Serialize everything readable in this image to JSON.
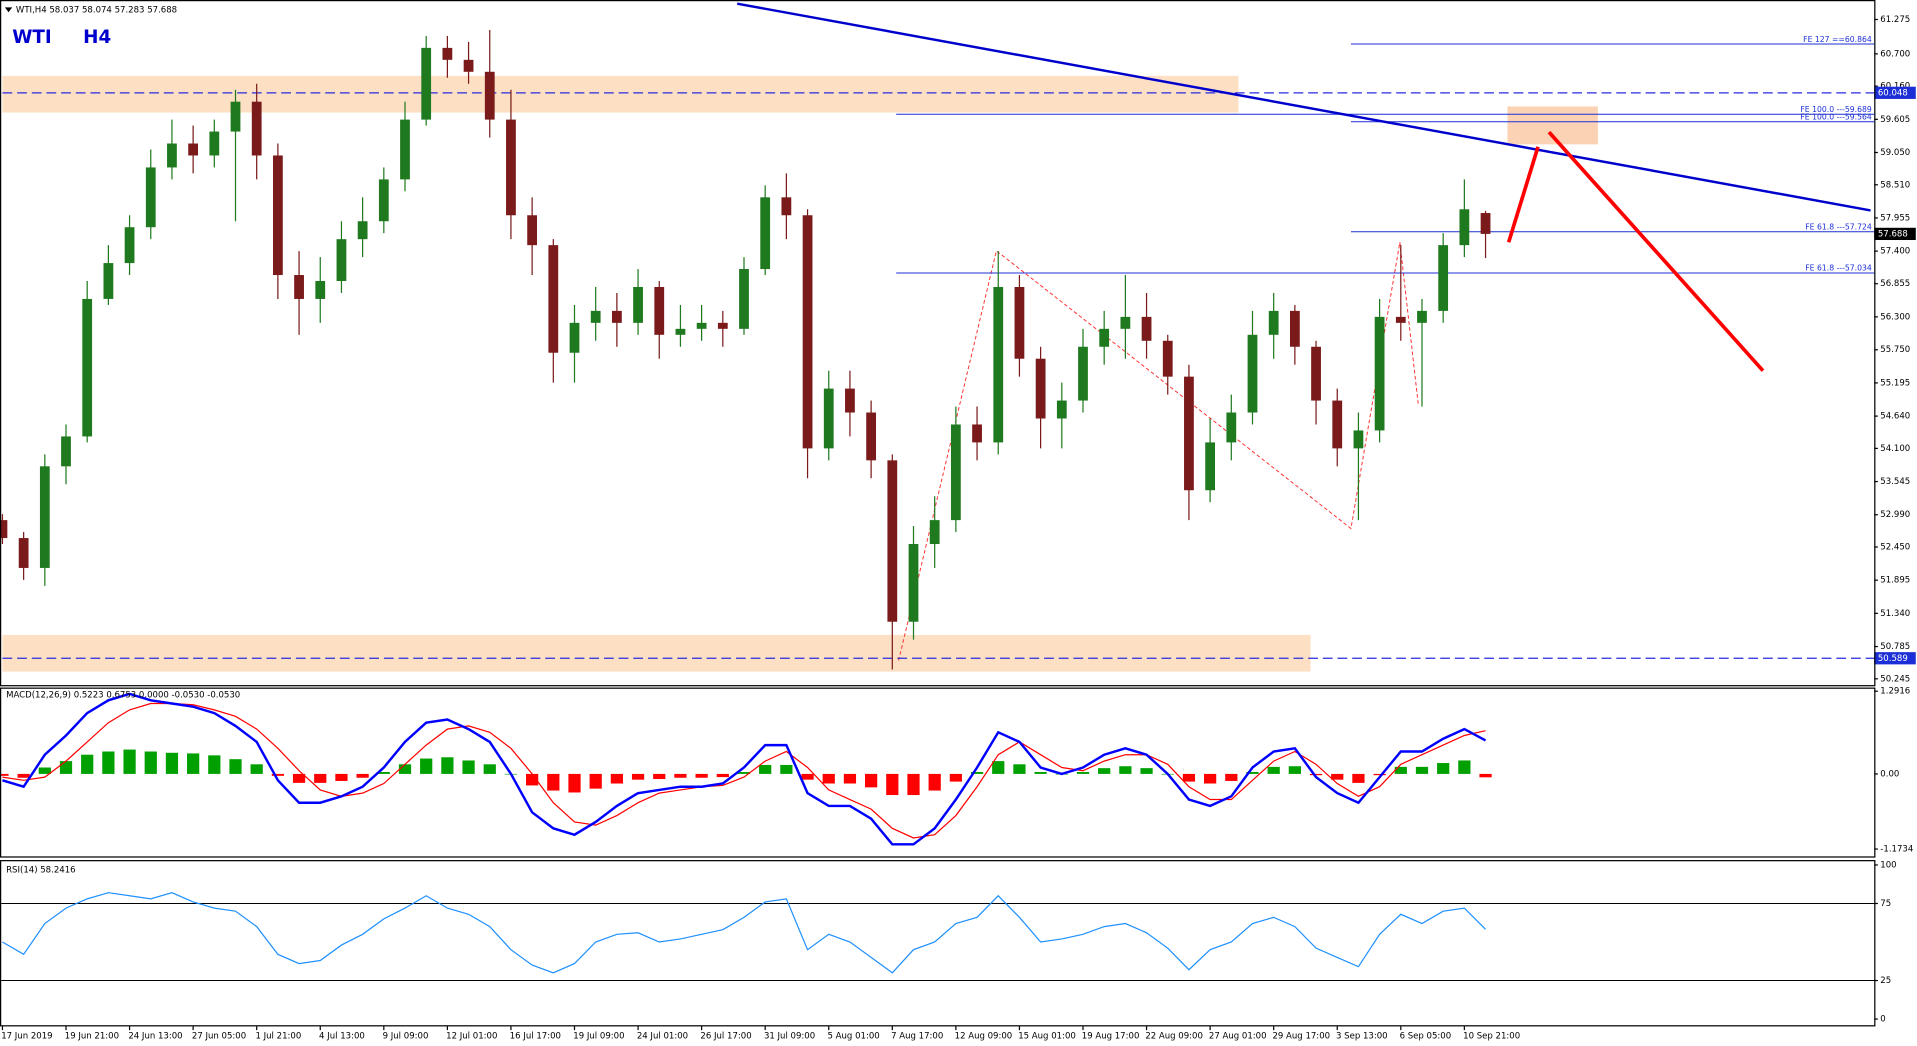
{
  "chart_data": [
    {
      "type": "candlestick",
      "header": "WTI,H4  58.037 58.074 57.283 57.688",
      "title": "WTI",
      "subtitle": "H4",
      "categories": [
        "17 Jun 2019",
        null,
        null,
        "19 Jun 21:00",
        null,
        null,
        "24 Jun 13:00",
        null,
        null,
        "27 Jun 05:00",
        null,
        null,
        "1 Jul 21:00",
        null,
        null,
        "4 Jul 13:00",
        null,
        null,
        "9 Jul 09:00",
        null,
        null,
        "12 Jul 01:00",
        null,
        null,
        "16 Jul 17:00",
        null,
        null,
        "19 Jul 09:00",
        null,
        null,
        "24 Jul 01:00",
        null,
        null,
        "26 Jul 17:00",
        null,
        null,
        "31 Jul 09:00",
        null,
        null,
        "5 Aug 01:00",
        null,
        null,
        "7 Aug 17:00",
        null,
        null,
        "12 Aug 09:00",
        null,
        null,
        "15 Aug 01:00",
        null,
        null,
        "19 Aug 17:00",
        null,
        null,
        "22 Aug 09:00",
        null,
        null,
        "27 Aug 01:00",
        null,
        null,
        "29 Aug 17:00",
        null,
        null,
        "3 Sep 13:00",
        null,
        null,
        "6 Sep 05:00",
        null,
        null,
        "10 Sep 21:00",
        null
      ],
      "open": [
        52.9,
        52.6,
        52.1,
        53.8,
        54.3,
        56.6,
        57.2,
        57.8,
        58.8,
        59.2,
        59.0,
        59.4,
        59.9,
        59.0,
        57.0,
        56.6,
        56.9,
        57.6,
        57.9,
        58.6,
        59.6,
        60.8,
        60.6,
        60.4,
        59.6,
        58.0,
        57.5,
        55.7,
        56.2,
        56.4,
        56.2,
        56.8,
        56.0,
        56.1,
        56.2,
        56.1,
        57.1,
        58.3,
        58.0,
        54.1,
        55.1,
        54.7,
        53.9,
        51.2,
        52.5,
        52.9,
        54.5,
        54.2,
        56.8,
        55.6,
        54.6,
        54.9,
        55.8,
        56.1,
        56.3,
        55.9,
        55.3,
        53.4,
        54.2,
        54.7,
        56.0,
        56.4,
        55.8,
        54.9,
        54.1,
        54.4,
        56.3,
        56.2,
        56.4,
        57.5,
        58.037
      ],
      "high": [
        53.0,
        52.7,
        54.0,
        54.5,
        56.9,
        57.5,
        58.0,
        59.1,
        59.6,
        59.5,
        59.6,
        60.1,
        60.2,
        59.2,
        57.4,
        57.3,
        57.9,
        58.3,
        58.8,
        59.9,
        61.0,
        61.0,
        60.9,
        61.1,
        60.1,
        58.3,
        57.6,
        56.5,
        56.8,
        56.7,
        57.1,
        56.9,
        56.5,
        56.5,
        56.4,
        57.3,
        58.5,
        58.7,
        58.1,
        55.4,
        55.4,
        54.9,
        54.0,
        52.8,
        53.3,
        54.8,
        54.8,
        57.4,
        57.0,
        55.8,
        55.2,
        56.1,
        56.4,
        57.0,
        56.7,
        56.0,
        55.5,
        54.6,
        55.0,
        56.4,
        56.7,
        56.5,
        55.9,
        55.1,
        54.7,
        56.6,
        57.5,
        56.6,
        57.7,
        58.6,
        58.074
      ],
      "low": [
        52.5,
        51.9,
        51.8,
        53.5,
        54.2,
        56.5,
        57.0,
        57.6,
        58.6,
        58.7,
        58.8,
        57.9,
        58.6,
        56.6,
        56.0,
        56.2,
        56.7,
        57.3,
        57.7,
        58.4,
        59.5,
        60.3,
        60.2,
        59.3,
        57.6,
        57.0,
        55.2,
        55.2,
        55.9,
        55.8,
        56.0,
        55.6,
        55.8,
        55.9,
        55.8,
        56.0,
        57.0,
        57.6,
        53.6,
        53.9,
        54.3,
        53.6,
        50.4,
        50.9,
        52.1,
        52.7,
        53.9,
        54.0,
        55.3,
        54.1,
        54.1,
        54.7,
        55.5,
        55.6,
        55.6,
        55.0,
        52.9,
        53.2,
        53.9,
        54.5,
        55.6,
        55.5,
        54.5,
        53.8,
        52.9,
        54.2,
        55.9,
        54.8,
        56.2,
        57.3,
        57.283
      ],
      "close": [
        52.6,
        52.1,
        53.8,
        54.3,
        56.6,
        57.2,
        57.8,
        58.8,
        59.2,
        59.0,
        59.4,
        59.9,
        59.0,
        57.0,
        56.6,
        56.9,
        57.6,
        57.9,
        58.6,
        59.6,
        60.8,
        60.6,
        60.4,
        59.6,
        58.0,
        57.5,
        55.7,
        56.2,
        56.4,
        56.2,
        56.8,
        56.0,
        56.1,
        56.2,
        56.1,
        57.1,
        58.3,
        58.0,
        54.1,
        55.1,
        54.7,
        53.9,
        51.2,
        52.5,
        52.9,
        54.5,
        54.2,
        56.8,
        55.6,
        54.6,
        54.9,
        55.8,
        56.1,
        56.3,
        55.9,
        55.3,
        53.4,
        54.2,
        54.7,
        56.0,
        56.4,
        55.8,
        54.9,
        54.1,
        54.4,
        56.3,
        56.2,
        56.4,
        57.5,
        58.1,
        57.688
      ],
      "up_color": "#1f7a1f",
      "down_color": "#7a1a1a",
      "ylim": [
        50.14,
        61.56
      ],
      "yticks": [
        61.275,
        {
          "value": 60.7,
          "label": "60.700"
        },
        {
          "value": 60.16,
          "label": "60.160"
        },
        59.605,
        {
          "value": 59.05,
          "label": "59.050"
        },
        {
          "value": 58.51,
          "label": "58.510"
        },
        57.955,
        {
          "value": 57.4,
          "label": "57.400"
        },
        56.855,
        {
          "value": 56.3,
          "label": "56.300"
        },
        {
          "value": 55.75,
          "label": "55.750"
        },
        55.195,
        {
          "value": 54.64,
          "label": "54.640"
        },
        {
          "value": 54.1,
          "label": "54.100"
        },
        53.545,
        {
          "value": 52.99,
          "label": "52.990"
        },
        {
          "value": 52.45,
          "label": "52.450"
        },
        51.895,
        {
          "value": 51.34,
          "label": "51.340"
        },
        50.785,
        50.245
      ],
      "level_lines": [
        60.048,
        50.589
      ],
      "current_price": 57.688,
      "fib_levels": [
        {
          "value": 60.864,
          "label": "FE 127 ==60.864"
        },
        {
          "value": 59.689,
          "label": "FE 100.0 ---59.689"
        },
        {
          "value": 59.564,
          "label": "FE 100.0 ---59.564"
        },
        {
          "value": 57.724,
          "label": "FE 61.8 ---57.724"
        },
        {
          "value": 57.034,
          "label": "FE 61.8 ---57.034"
        }
      ]
    },
    {
      "type": "macd",
      "title": "MACD(12,26,9) 0.5223 0.6753 0.0000 -0.0530 -0.0530",
      "macd": [
        -0.1,
        -0.2,
        0.3,
        0.6,
        0.95,
        1.15,
        1.25,
        1.15,
        1.1,
        1.05,
        0.95,
        0.75,
        0.5,
        -0.1,
        -0.45,
        -0.45,
        -0.35,
        -0.2,
        0.1,
        0.5,
        0.8,
        0.85,
        0.7,
        0.5,
        0.0,
        -0.6,
        -0.85,
        -0.95,
        -0.75,
        -0.5,
        -0.3,
        -0.25,
        -0.2,
        -0.2,
        -0.15,
        0.1,
        0.45,
        0.45,
        -0.3,
        -0.5,
        -0.5,
        -0.7,
        -1.1,
        -1.1,
        -0.85,
        -0.4,
        0.1,
        0.65,
        0.5,
        0.1,
        0.0,
        0.1,
        0.3,
        0.4,
        0.3,
        0.0,
        -0.4,
        -0.5,
        -0.35,
        0.1,
        0.35,
        0.4,
        -0.05,
        -0.3,
        -0.45,
        -0.05,
        0.35,
        0.35,
        0.55,
        0.7,
        0.5223
      ],
      "signal": [
        -0.05,
        -0.1,
        -0.05,
        0.2,
        0.5,
        0.8,
        1.0,
        1.1,
        1.1,
        1.08,
        1.0,
        0.9,
        0.7,
        0.4,
        0.05,
        -0.25,
        -0.35,
        -0.3,
        -0.15,
        0.15,
        0.45,
        0.7,
        0.75,
        0.65,
        0.4,
        0.0,
        -0.45,
        -0.75,
        -0.8,
        -0.65,
        -0.45,
        -0.3,
        -0.25,
        -0.2,
        -0.18,
        -0.05,
        0.2,
        0.35,
        0.1,
        -0.25,
        -0.4,
        -0.55,
        -0.85,
        -1.0,
        -0.95,
        -0.65,
        -0.2,
        0.3,
        0.5,
        0.3,
        0.1,
        0.05,
        0.2,
        0.3,
        0.3,
        0.15,
        -0.2,
        -0.4,
        -0.4,
        -0.1,
        0.2,
        0.35,
        0.15,
        -0.15,
        -0.35,
        -0.2,
        0.15,
        0.3,
        0.45,
        0.6,
        0.6753
      ],
      "histogram": [
        -0.03,
        -0.06,
        0.1,
        0.2,
        0.3,
        0.35,
        0.38,
        0.35,
        0.33,
        0.32,
        0.29,
        0.23,
        0.15,
        -0.03,
        -0.14,
        -0.14,
        -0.11,
        -0.06,
        0.03,
        0.15,
        0.24,
        0.26,
        0.21,
        0.15,
        0.0,
        -0.18,
        -0.26,
        -0.29,
        -0.23,
        -0.15,
        -0.09,
        -0.08,
        -0.06,
        -0.06,
        -0.05,
        0.03,
        0.14,
        0.14,
        -0.09,
        -0.15,
        -0.15,
        -0.21,
        -0.33,
        -0.33,
        -0.26,
        -0.12,
        0.03,
        0.2,
        0.15,
        0.03,
        0.0,
        0.03,
        0.09,
        0.12,
        0.09,
        0.0,
        -0.12,
        -0.15,
        -0.11,
        0.03,
        0.11,
        0.12,
        -0.02,
        -0.09,
        -0.14,
        -0.02,
        0.11,
        0.11,
        0.17,
        0.21,
        -0.053
      ],
      "macd_color": "#0000ff",
      "signal_color": "#ff0000",
      "up_color": "#00a000",
      "down_color": "#ff0000",
      "ylim": [
        -1.288,
        1.349
      ],
      "yticks": [
        1.2916,
        {
          "value": 0,
          "label": "0.00"
        },
        -1.1734
      ]
    },
    {
      "type": "line",
      "title": "RSI(14) 58.2416",
      "values": [
        50,
        42,
        62,
        72,
        78,
        82,
        80,
        78,
        82,
        76,
        72,
        70,
        60,
        42,
        36,
        38,
        48,
        55,
        65,
        72,
        80,
        72,
        68,
        60,
        45,
        35,
        30,
        36,
        50,
        55,
        56,
        50,
        52,
        55,
        58,
        66,
        76,
        78,
        45,
        55,
        50,
        40,
        30,
        45,
        50,
        62,
        66,
        80,
        66,
        50,
        52,
        55,
        60,
        62,
        56,
        46,
        32,
        45,
        50,
        62,
        66,
        60,
        46,
        40,
        34,
        55,
        68,
        62,
        70,
        72,
        58.2416
      ],
      "color": "#1e90ff",
      "ylim": [
        -4,
        102.4
      ],
      "yticks": [
        100,
        75,
        25,
        0
      ],
      "levels": [
        75,
        25
      ]
    }
  ]
}
